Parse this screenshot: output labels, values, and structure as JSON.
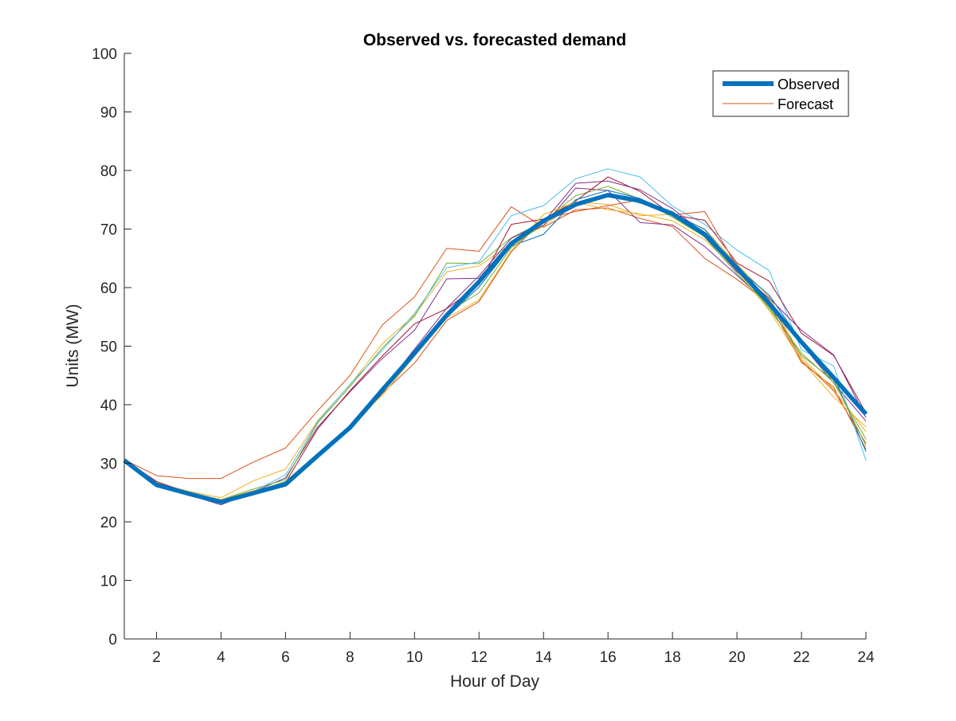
{
  "chart_data": {
    "type": "line",
    "title": "Observed vs. forecasted demand",
    "xlabel": "Hour of Day",
    "ylabel": "Units (MW)",
    "xlim": [
      1,
      24
    ],
    "ylim": [
      0,
      100
    ],
    "xticks": [
      2,
      4,
      6,
      8,
      10,
      12,
      14,
      16,
      18,
      20,
      22,
      24
    ],
    "yticks": [
      0,
      10,
      20,
      30,
      40,
      50,
      60,
      70,
      80,
      90,
      100
    ],
    "grid": false,
    "legend_position": "top-right",
    "legend": [
      {
        "label": "Observed",
        "color": "#0072BD",
        "style": "thick"
      },
      {
        "label": "Forecast",
        "color": "#D95319",
        "style": "thin"
      }
    ],
    "x": [
      1,
      2,
      3,
      4,
      5,
      6,
      7,
      8,
      9,
      10,
      11,
      12,
      13,
      14,
      15,
      16,
      17,
      18,
      19,
      20,
      21,
      22,
      23,
      24
    ],
    "observed": {
      "name": "Observed",
      "color": "#0072BD",
      "values": [
        30.5,
        26.3,
        24.8,
        23.4,
        24.9,
        26.4,
        31.3,
        36.1,
        42.5,
        48.8,
        55.3,
        61.0,
        67.5,
        71.4,
        74.2,
        75.8,
        74.8,
        72.6,
        69.1,
        63.4,
        57.3,
        50.7,
        44.6,
        38.4
      ]
    },
    "forecasts": [
      {
        "color": "#D95319",
        "values": [
          30.6,
          27.9,
          27.4,
          27.4,
          30.2,
          32.6,
          39.0,
          45.0,
          53.6,
          58.4,
          66.7,
          66.2,
          73.8,
          70.3,
          73.3,
          73.6,
          71.8,
          70.4,
          65.0,
          61.4,
          57.3,
          47.2,
          43.0,
          32.4
        ]
      },
      {
        "color": "#EDB120",
        "values": [
          30.7,
          26.7,
          25.2,
          24.1,
          27.0,
          29.0,
          37.3,
          43.4,
          50.4,
          55.3,
          62.7,
          63.7,
          67.5,
          70.5,
          74.6,
          74.2,
          72.3,
          72.5,
          70.0,
          64.0,
          58.4,
          48.1,
          42.6,
          35.4
        ]
      },
      {
        "color": "#7E2F8E",
        "values": [
          30.4,
          26.5,
          24.6,
          22.9,
          25.1,
          27.5,
          36.2,
          42.2,
          47.9,
          52.7,
          61.5,
          61.6,
          67.9,
          70.6,
          77.0,
          76.6,
          71.1,
          70.7,
          67.0,
          62.1,
          57.0,
          50.4,
          43.7,
          37.2
        ]
      },
      {
        "color": "#77AC30",
        "values": [
          30.8,
          26.4,
          24.9,
          23.8,
          25.6,
          27.2,
          36.9,
          43.1,
          49.7,
          55.1,
          64.2,
          64.1,
          68.5,
          71.3,
          75.7,
          77.3,
          75.1,
          72.0,
          68.7,
          63.3,
          56.4,
          48.8,
          43.8,
          34.1
        ]
      },
      {
        "color": "#4DBEEE",
        "values": [
          30.5,
          26.2,
          24.7,
          23.7,
          25.2,
          28.0,
          37.1,
          43.5,
          49.3,
          55.6,
          63.4,
          64.4,
          72.3,
          74.0,
          78.6,
          80.3,
          78.9,
          73.9,
          70.8,
          66.4,
          62.9,
          49.4,
          46.6,
          30.5
        ]
      },
      {
        "color": "#A2142F",
        "values": [
          30.6,
          26.9,
          24.9,
          23.5,
          25.1,
          26.7,
          35.9,
          42.4,
          48.3,
          53.8,
          56.4,
          60.5,
          70.8,
          71.7,
          74.8,
          78.9,
          76.4,
          72.4,
          71.5,
          64.2,
          61.1,
          52.2,
          48.4,
          38.6
        ]
      },
      {
        "color": "#0072BD",
        "values": [
          30.3,
          26.2,
          24.5,
          23.1,
          24.8,
          26.8,
          31.0,
          36.5,
          42.9,
          48.9,
          54.9,
          60.1,
          67.1,
          69.1,
          75.0,
          76.6,
          75.2,
          72.7,
          69.9,
          63.4,
          58.7,
          50.8,
          44.9,
          32.0
        ]
      },
      {
        "color": "#D95319",
        "values": [
          30.4,
          26.5,
          24.8,
          23.6,
          24.9,
          26.5,
          31.5,
          35.7,
          41.9,
          47.1,
          54.4,
          57.6,
          66.1,
          71.7,
          73.0,
          74.0,
          75.0,
          72.4,
          73.0,
          63.6,
          57.9,
          47.6,
          42.4,
          33.4
        ]
      },
      {
        "color": "#EDB120",
        "values": [
          30.7,
          26.4,
          24.9,
          23.8,
          25.3,
          26.6,
          31.4,
          36.5,
          41.6,
          48.3,
          54.8,
          57.9,
          66.3,
          72.5,
          74.6,
          73.3,
          72.6,
          71.4,
          68.2,
          62.9,
          56.1,
          47.5,
          41.3,
          36.2
        ]
      },
      {
        "color": "#7E2F8E",
        "values": [
          30.3,
          26.6,
          24.5,
          23.2,
          25.0,
          26.3,
          31.1,
          36.3,
          42.5,
          49.5,
          56.5,
          62.0,
          68.4,
          71.2,
          77.8,
          78.2,
          76.7,
          73.5,
          69.1,
          62.7,
          58.2,
          52.7,
          48.5,
          37.8
        ]
      },
      {
        "color": "#77AC30",
        "values": [
          30.6,
          26.7,
          24.7,
          23.6,
          25.1,
          26.9,
          31.7,
          36.2,
          43.0,
          49.0,
          55.7,
          59.1,
          66.8,
          71.0,
          74.4,
          76.1,
          74.4,
          73.0,
          68.6,
          62.4,
          56.7,
          48.4,
          44.2,
          33.0
        ]
      }
    ]
  }
}
